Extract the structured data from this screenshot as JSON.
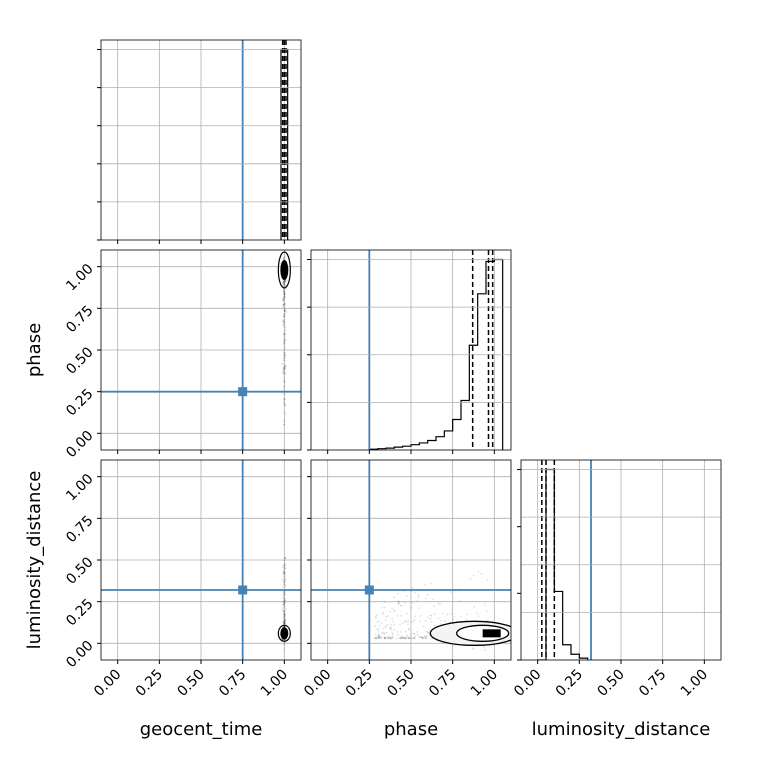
{
  "chart_data": {
    "type": "corner",
    "parameters": [
      "geocent_time",
      "phase",
      "luminosity_distance"
    ],
    "truths": [
      0.75,
      0.25,
      0.32
    ],
    "ticks": {
      "range": [
        -0.1,
        1.1
      ],
      "values": [
        0.0,
        0.25,
        0.5,
        0.75,
        1.0
      ],
      "labels": [
        "0.00",
        "0.25",
        "0.50",
        "0.75",
        "1.00"
      ]
    },
    "colors": {
      "truth": "#4682b4",
      "hist": "#000000",
      "grid": "#b0b0b0"
    },
    "grid": true,
    "histograms": [
      {
        "parameter": "geocent_time",
        "bins": [
          0.98,
          1.02
        ],
        "heights": [
          1.0
        ],
        "quantiles": [
          0.99,
          1.0,
          1.01
        ]
      },
      {
        "parameter": "phase",
        "bins": [
          0.25,
          0.3,
          0.35,
          0.4,
          0.45,
          0.5,
          0.55,
          0.6,
          0.65,
          0.7,
          0.75,
          0.8,
          0.85,
          0.9,
          0.95,
          1.0,
          1.05
        ],
        "heights": [
          0.004,
          0.007,
          0.01,
          0.015,
          0.02,
          0.028,
          0.037,
          0.05,
          0.07,
          0.1,
          0.16,
          0.26,
          0.55,
          0.82,
          0.99,
          1.0
        ],
        "quantiles": [
          0.87,
          0.965,
          0.99
        ]
      },
      {
        "parameter": "luminosity_distance",
        "bins": [
          0.0,
          0.05,
          0.1,
          0.15,
          0.2,
          0.25,
          0.3
        ],
        "heights": [
          0.0,
          1.0,
          0.36,
          0.08,
          0.03,
          0.01,
          0.0
        ],
        "quantiles": [
          0.025,
          0.05,
          0.1
        ]
      }
    ],
    "pairs": [
      {
        "x": "geocent_time",
        "y": "phase",
        "center": [
          1.0,
          0.98
        ],
        "spread": [
          0.004,
          0.02
        ],
        "tail": [
          0.04,
          0.99
        ]
      },
      {
        "x": "geocent_time",
        "y": "luminosity_distance",
        "center": [
          1.0,
          0.06
        ],
        "spread": [
          0.004,
          0.015
        ],
        "tail": [
          0.03,
          0.52
        ]
      },
      {
        "x": "phase",
        "y": "luminosity_distance",
        "center": [
          0.98,
          0.06
        ],
        "spread": [
          0.05,
          0.02
        ],
        "tail": [
          0.03,
          0.52
        ]
      }
    ]
  }
}
